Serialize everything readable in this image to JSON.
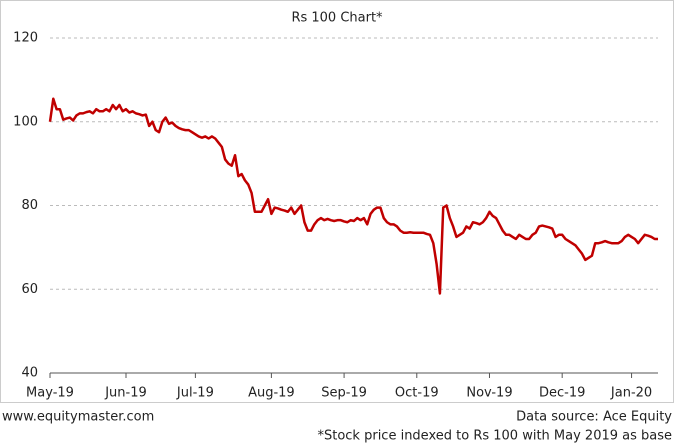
{
  "chart_data": {
    "type": "line",
    "title": "Rs 100 Chart*",
    "values": [
      100,
      105.5,
      103,
      103,
      100.5,
      100.8,
      101,
      100.3,
      101.5,
      102,
      102,
      102.3,
      102.5,
      102,
      103,
      102.5,
      102.5,
      103,
      102.5,
      104,
      103,
      104,
      102.5,
      103,
      102.2,
      102.5,
      102,
      101.8,
      101.5,
      101.7,
      99,
      100,
      98,
      97.5,
      100,
      101,
      99.5,
      99.8,
      99,
      98.5,
      98.2,
      98,
      98,
      97.5,
      97,
      96.5,
      96.2,
      96.5,
      96,
      96.5,
      96,
      95,
      94,
      91,
      90,
      89.5,
      92,
      87,
      87.5,
      86,
      85,
      83,
      78.5,
      78.5,
      78.5,
      80,
      81.5,
      78,
      79.5,
      79.3,
      79,
      78.8,
      78.5,
      79.5,
      78,
      79,
      80,
      76,
      74,
      74,
      75.5,
      76.5,
      77,
      76.5,
      76.8,
      76.5,
      76.3,
      76.5,
      76.5,
      76.2,
      76,
      76.5,
      76.3,
      77,
      76.5,
      77,
      75.5,
      78,
      79,
      79.5,
      79.5,
      77,
      76,
      75.5,
      75.5,
      75,
      74,
      73.5,
      73.5,
      73.6,
      73.5,
      73.5,
      73.5,
      73.5,
      73.2,
      73,
      71,
      66,
      59,
      79.5,
      80,
      77,
      75,
      72.5,
      73,
      73.5,
      75,
      74.5,
      76,
      75.8,
      75.5,
      76,
      77,
      78.5,
      77.5,
      77,
      75.5,
      74,
      73,
      73,
      72.5,
      72,
      73,
      72.5,
      72,
      72,
      73,
      73.5,
      75,
      75.2,
      75,
      74.8,
      74.5,
      72.5,
      73,
      73,
      72,
      71.5,
      71,
      70.5,
      69.5,
      68.5,
      67,
      67.5,
      68,
      71,
      71,
      71.2,
      71.5,
      71.2,
      71,
      71,
      71,
      71.5,
      72.5,
      73,
      72.5,
      72,
      71,
      72,
      73,
      72.8,
      72.5,
      72,
      72
    ],
    "color": "#c00000",
    "xlim": [
      0,
      184
    ],
    "xticks": [
      {
        "value": 0,
        "label": "May-19"
      },
      {
        "value": 23,
        "label": "Jun-19"
      },
      {
        "value": 44,
        "label": "Jul-19"
      },
      {
        "value": 67,
        "label": "Aug-19"
      },
      {
        "value": 89,
        "label": "Sep-19"
      },
      {
        "value": 111,
        "label": "Oct-19"
      },
      {
        "value": 133,
        "label": "Nov-19"
      },
      {
        "value": 155,
        "label": "Dec-19"
      },
      {
        "value": 176,
        "label": "Jan-20"
      }
    ],
    "ylim": [
      40,
      120
    ],
    "yticks": [
      40,
      60,
      80,
      100,
      120
    ],
    "grid": true,
    "source": "www.equitymaster.com",
    "data_source": "Data source: Ace Equity",
    "footnote": "*Stock price indexed to Rs 100 with May 2019 as base"
  }
}
